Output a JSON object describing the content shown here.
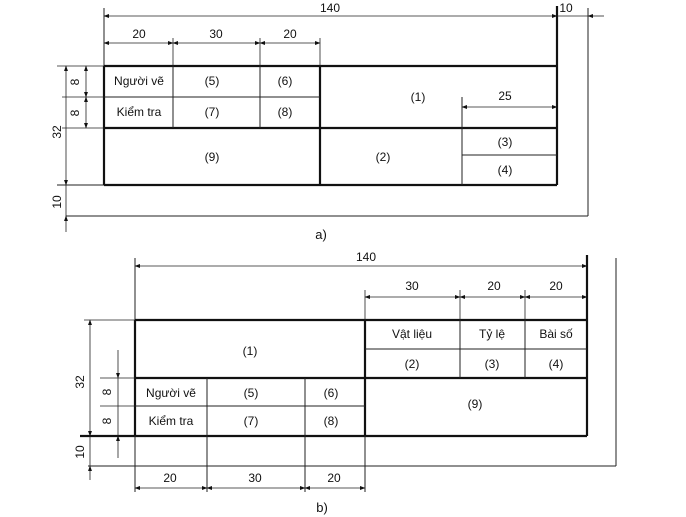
{
  "figure_a": {
    "caption": "a)",
    "dims": {
      "overall": "140",
      "margin_right": "10",
      "margin_bottom": "10",
      "height": "32",
      "row1": "8",
      "row2": "8",
      "col1": "20",
      "col2": "30",
      "col3": "20",
      "col_right": "25"
    },
    "cells": {
      "drawn_by": "Người vẽ",
      "checked_by": "Kiểm tra",
      "c1": "(1)",
      "c2": "(2)",
      "c3": "(3)",
      "c4": "(4)",
      "c5": "(5)",
      "c6": "(6)",
      "c7": "(7)",
      "c8": "(8)",
      "c9": "(9)"
    }
  },
  "figure_b": {
    "caption": "b)",
    "dims": {
      "overall": "140",
      "margin_bottom": "10",
      "height": "32",
      "row1": "8",
      "row2": "8",
      "top_col1": "30",
      "top_col2": "20",
      "top_col3": "20",
      "bot_col1": "20",
      "bot_col2": "30",
      "bot_col3": "20"
    },
    "cells": {
      "material": "Vật liệu",
      "scale": "Tỷ lệ",
      "sheet_no": "Bài số",
      "drawn_by": "Người vẽ",
      "checked_by": "Kiểm tra",
      "c1": "(1)",
      "c2": "(2)",
      "c3": "(3)",
      "c4": "(4)",
      "c5": "(5)",
      "c6": "(6)",
      "c7": "(7)",
      "c8": "(8)",
      "c9": "(9)"
    }
  }
}
